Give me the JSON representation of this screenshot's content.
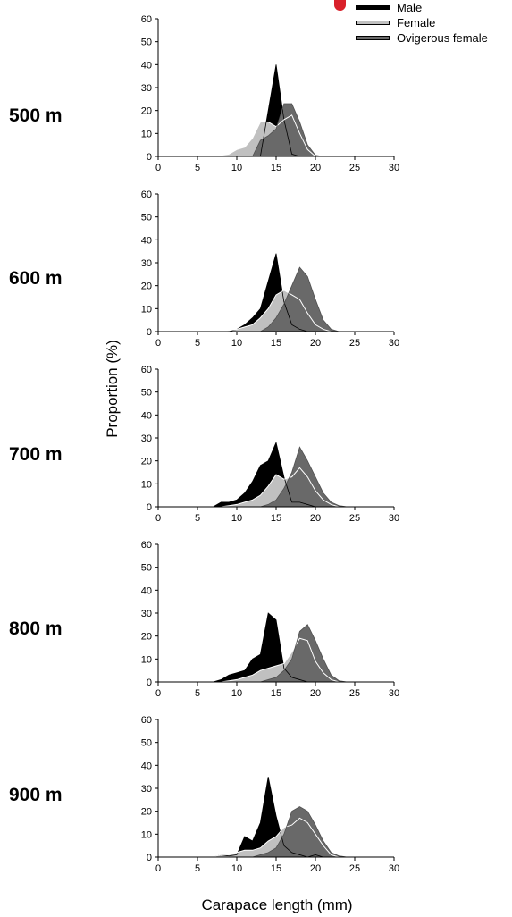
{
  "legend": {
    "items": [
      {
        "label": "Male",
        "color": "#000000"
      },
      {
        "label": "Female",
        "color": "#c0c0c0"
      },
      {
        "label": "Ovigerous female",
        "color": "#696969"
      }
    ]
  },
  "axis": {
    "ylabel": "Proportion (%)",
    "xlabel": "Carapace length (mm)",
    "xticks": [
      "0",
      "5",
      "10",
      "15",
      "20",
      "25",
      "30"
    ],
    "yticks": [
      "0",
      "10",
      "20",
      "30",
      "40",
      "50",
      "60"
    ]
  },
  "colors": {
    "male": "#000000",
    "female": "#c0c0c0",
    "ovigerous": "#696969",
    "female_line": "#ffffff"
  },
  "chart_data": [
    {
      "type": "area",
      "panel_label": "500 m",
      "x": [
        0,
        1,
        2,
        3,
        4,
        5,
        6,
        7,
        8,
        9,
        10,
        11,
        12,
        13,
        14,
        15,
        16,
        17,
        18,
        19,
        20,
        21,
        22,
        23,
        24,
        25,
        26,
        27,
        28,
        29,
        30
      ],
      "xlim": [
        0,
        30
      ],
      "ylim": [
        0,
        60
      ],
      "series": [
        {
          "name": "Male",
          "values": [
            0,
            0,
            0,
            0,
            0,
            0,
            0,
            0,
            0,
            0,
            0,
            0,
            0,
            0,
            20,
            40,
            16,
            1,
            0,
            0,
            0,
            0,
            0,
            0,
            0,
            0,
            0,
            0,
            0,
            0,
            0
          ]
        },
        {
          "name": "Female",
          "values": [
            0,
            0,
            0,
            0,
            0,
            0,
            0,
            0,
            0.5,
            1,
            3,
            4,
            8,
            15,
            15,
            13,
            16,
            18,
            10,
            3,
            0,
            0,
            0,
            0,
            0,
            0,
            0,
            0,
            0,
            0,
            0
          ]
        },
        {
          "name": "Ovigerous female",
          "values": [
            0,
            0,
            0,
            0,
            0,
            0,
            0,
            0,
            0,
            0,
            0,
            0,
            0,
            7,
            9,
            12,
            23,
            23,
            15,
            5,
            0.5,
            0,
            0,
            0,
            0,
            0,
            0,
            0,
            0,
            0,
            0
          ]
        }
      ]
    },
    {
      "type": "area",
      "panel_label": "600 m",
      "x": [
        0,
        1,
        2,
        3,
        4,
        5,
        6,
        7,
        8,
        9,
        10,
        11,
        12,
        13,
        14,
        15,
        16,
        17,
        18,
        19,
        20,
        21,
        22,
        23,
        24,
        25,
        26,
        27,
        28,
        29,
        30
      ],
      "xlim": [
        0,
        30
      ],
      "ylim": [
        0,
        60
      ],
      "series": [
        {
          "name": "Male",
          "values": [
            0,
            0,
            0,
            0,
            0,
            0,
            0,
            0,
            0,
            0,
            1,
            3,
            6,
            10,
            22,
            34,
            13,
            3,
            1,
            0,
            0,
            0,
            0,
            0,
            0,
            0,
            0,
            0,
            0,
            0,
            0
          ]
        },
        {
          "name": "Female",
          "values": [
            0,
            0,
            0,
            0,
            0,
            0,
            0,
            0,
            0,
            0.5,
            1,
            2,
            3,
            6,
            10,
            16,
            18,
            16,
            14,
            8,
            3,
            1,
            0,
            0,
            0,
            0,
            0,
            0,
            0,
            0,
            0
          ]
        },
        {
          "name": "Ovigerous female",
          "values": [
            0,
            0,
            0,
            0,
            0,
            0,
            0,
            0,
            0,
            0,
            0,
            0,
            0,
            0,
            2,
            6,
            12,
            20,
            28,
            24,
            14,
            5,
            1,
            0,
            0,
            0,
            0,
            0,
            0,
            0,
            0
          ]
        }
      ]
    },
    {
      "type": "area",
      "panel_label": "700 m",
      "x": [
        0,
        1,
        2,
        3,
        4,
        5,
        6,
        7,
        8,
        9,
        10,
        11,
        12,
        13,
        14,
        15,
        16,
        17,
        18,
        19,
        20,
        21,
        22,
        23,
        24,
        25,
        26,
        27,
        28,
        29,
        30
      ],
      "xlim": [
        0,
        30
      ],
      "ylim": [
        0,
        60
      ],
      "series": [
        {
          "name": "Male",
          "values": [
            0,
            0,
            0,
            0,
            0,
            0,
            0,
            0,
            2,
            2,
            3,
            6,
            11,
            18,
            20,
            28,
            13,
            2,
            2,
            1,
            0,
            0,
            0,
            0,
            0,
            0,
            0,
            0,
            0,
            0,
            0
          ]
        },
        {
          "name": "Female",
          "values": [
            0,
            0,
            0,
            0,
            0,
            0,
            0,
            0,
            0,
            0.5,
            1,
            2,
            3,
            5,
            9,
            14,
            12,
            13,
            17,
            13,
            7,
            3,
            1,
            0,
            0,
            0,
            0,
            0,
            0,
            0,
            0
          ]
        },
        {
          "name": "Ovigerous female",
          "values": [
            0,
            0,
            0,
            0,
            0,
            0,
            0,
            0,
            0,
            0,
            0,
            0,
            0,
            0,
            1,
            3,
            8,
            15,
            26,
            20,
            13,
            6,
            2,
            0.5,
            0,
            0,
            0,
            0,
            0,
            0,
            0
          ]
        }
      ]
    },
    {
      "type": "area",
      "panel_label": "800 m",
      "x": [
        0,
        1,
        2,
        3,
        4,
        5,
        6,
        7,
        8,
        9,
        10,
        11,
        12,
        13,
        14,
        15,
        16,
        17,
        18,
        19,
        20,
        21,
        22,
        23,
        24,
        25,
        26,
        27,
        28,
        29,
        30
      ],
      "xlim": [
        0,
        30
      ],
      "ylim": [
        0,
        60
      ],
      "series": [
        {
          "name": "Male",
          "values": [
            0,
            0,
            0,
            0,
            0,
            0,
            0,
            0,
            1,
            3,
            4,
            5,
            10,
            12,
            30,
            27,
            6,
            2,
            1,
            0,
            0,
            0,
            0,
            0,
            0,
            0,
            0,
            0,
            0,
            0,
            0
          ]
        },
        {
          "name": "Female",
          "values": [
            0,
            0,
            0,
            0,
            0,
            0,
            0,
            0,
            0,
            0.5,
            1,
            2,
            3,
            5,
            6,
            7,
            8,
            13,
            19,
            18,
            9,
            4,
            1,
            0,
            0,
            0,
            0,
            0,
            0,
            0,
            0
          ]
        },
        {
          "name": "Ovigerous female",
          "values": [
            0,
            0,
            0,
            0,
            0,
            0,
            0,
            0,
            0,
            0,
            0,
            0,
            0,
            0,
            1,
            2,
            5,
            10,
            22,
            25,
            18,
            10,
            3,
            0.5,
            0,
            0,
            0,
            0,
            0,
            0,
            0
          ]
        }
      ]
    },
    {
      "type": "area",
      "panel_label": "900 m",
      "x": [
        0,
        1,
        2,
        3,
        4,
        5,
        6,
        7,
        8,
        9,
        10,
        11,
        12,
        13,
        14,
        15,
        16,
        17,
        18,
        19,
        20,
        21,
        22,
        23,
        24,
        25,
        26,
        27,
        28,
        29,
        30
      ],
      "xlim": [
        0,
        30
      ],
      "ylim": [
        0,
        60
      ],
      "series": [
        {
          "name": "Male",
          "values": [
            0,
            0,
            0,
            0,
            0,
            0,
            0,
            0,
            1,
            0.5,
            1,
            9,
            7,
            15,
            35,
            18,
            5,
            2,
            1,
            0,
            1,
            0,
            0,
            0,
            0,
            0,
            0,
            0,
            0,
            0,
            0
          ]
        },
        {
          "name": "Female",
          "values": [
            0,
            0,
            0,
            0,
            0,
            0,
            0,
            0,
            1,
            1,
            2,
            3,
            3,
            4,
            7,
            9,
            13,
            14,
            17,
            15,
            10,
            5,
            1,
            0,
            0,
            0,
            0,
            0,
            0,
            0,
            0
          ]
        },
        {
          "name": "Ovigerous female",
          "values": [
            0,
            0,
            0,
            0,
            0,
            0,
            0,
            0,
            0,
            0,
            0,
            0,
            0,
            1,
            2,
            4,
            10,
            20,
            22,
            20,
            14,
            7,
            2,
            0.5,
            0,
            0,
            0,
            0,
            0,
            0,
            0
          ]
        }
      ]
    }
  ]
}
